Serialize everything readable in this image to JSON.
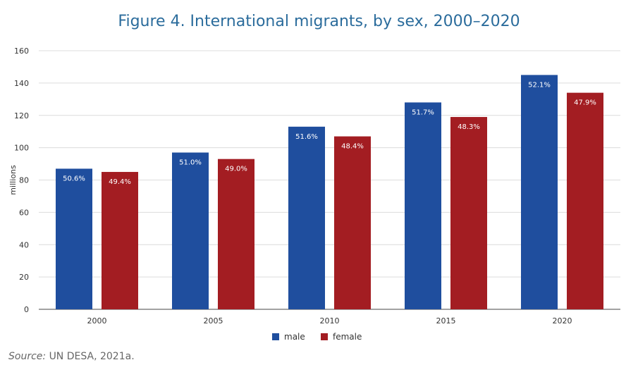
{
  "chart_data": {
    "type": "bar",
    "title": "Figure 4. International migrants, by sex, 2000–2020",
    "xlabel": "",
    "ylabel": "millions",
    "ylim": [
      0,
      160
    ],
    "yticks": [
      0,
      20,
      40,
      60,
      80,
      100,
      120,
      140,
      160
    ],
    "categories": [
      "2000",
      "2005",
      "2010",
      "2015",
      "2020"
    ],
    "grid": true,
    "legend_position": "bottom",
    "series": [
      {
        "name": "male",
        "color": "#1f4e9e",
        "values": [
          87,
          97,
          113,
          128,
          145
        ],
        "labels": [
          "50.6%",
          "51.0%",
          "51.6%",
          "51.7%",
          "52.1%"
        ]
      },
      {
        "name": "female",
        "color": "#a31d22",
        "values": [
          85,
          93,
          107,
          119,
          134
        ],
        "labels": [
          "49.4%",
          "49.0%",
          "48.4%",
          "48.3%",
          "47.9%"
        ]
      }
    ]
  },
  "source": {
    "label": "Source:",
    "text": "UN DESA, 2021a."
  }
}
